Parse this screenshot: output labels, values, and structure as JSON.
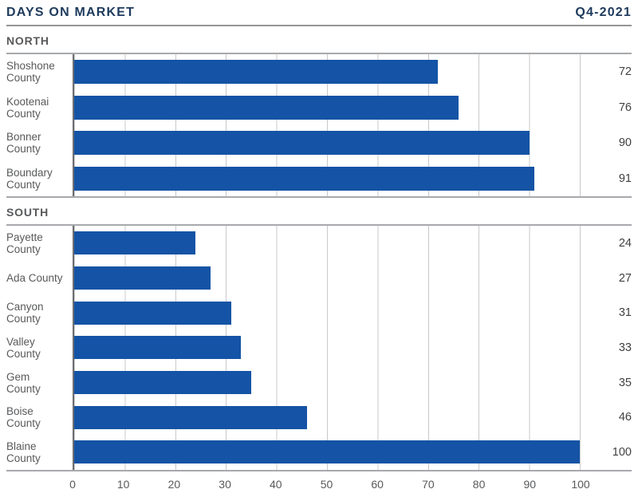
{
  "header": {
    "title": "DAYS ON MARKET",
    "period": "Q4-2021"
  },
  "colors": {
    "bar": "#1453a5",
    "navy": "#1d3a5c",
    "text_gray": "#58595b",
    "value_gray": "#414042",
    "gridline": "#c9c9c9"
  },
  "axis": {
    "ticks": [
      "0",
      "10",
      "20",
      "30",
      "40",
      "50",
      "60",
      "70",
      "80",
      "90",
      "100"
    ]
  },
  "chart_data": [
    {
      "type": "bar",
      "orientation": "horizontal",
      "section": "NORTH",
      "categories": [
        "Shoshone County",
        "Kootenai County",
        "Bonner County",
        "Boundary County"
      ],
      "values": [
        72,
        76,
        90,
        91
      ],
      "xlim": [
        0,
        100
      ],
      "grid": "vertical every 10",
      "value_labels_position": "right"
    },
    {
      "type": "bar",
      "orientation": "horizontal",
      "section": "SOUTH",
      "categories": [
        "Payette County",
        "Ada County",
        "Canyon County",
        "Valley County",
        "Gem County",
        "Boise County",
        "Blaine County"
      ],
      "values": [
        24,
        27,
        31,
        33,
        35,
        46,
        100
      ],
      "xlim": [
        0,
        100
      ],
      "grid": "vertical every 10",
      "value_labels_position": "right"
    }
  ]
}
